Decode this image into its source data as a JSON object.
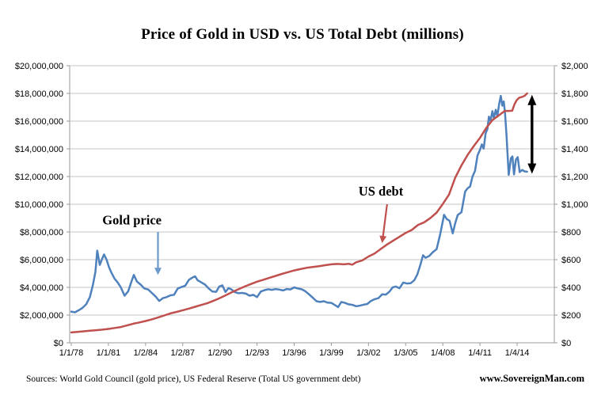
{
  "chart_data": {
    "type": "line",
    "title": "Price of Gold in USD vs. US Total Debt (millions)",
    "grid": true,
    "legend": "none",
    "x_axis": {
      "labels": [
        "1/1/78",
        "1/1/81",
        "1/2/84",
        "1/2/87",
        "1/2/90",
        "1/2/93",
        "1/3/96",
        "1/3/99",
        "1/3/02",
        "1/3/05",
        "1/4/08",
        "1/4/11",
        "1/4/14"
      ],
      "label_years": [
        1978,
        1981,
        1984,
        1987,
        1990,
        1993,
        1996,
        1999,
        2002,
        2005,
        2008,
        2011,
        2014
      ],
      "range_years": [
        1978,
        2017
      ]
    },
    "left_axis": {
      "min": 0,
      "max": 20000000,
      "tick_step": 2000000,
      "labels": [
        "$0",
        "$2,000,000",
        "$4,000,000",
        "$6,000,000",
        "$8,000,000",
        "$10,000,000",
        "$12,000,000",
        "$14,000,000",
        "$16,000,000",
        "$18,000,000",
        "$20,000,000"
      ]
    },
    "right_axis": {
      "min": 0,
      "max": 2000,
      "tick_step": 200,
      "labels": [
        "$0",
        "$200",
        "$400",
        "$600",
        "$800",
        "$1,000",
        "$1,200",
        "$1,400",
        "$1,600",
        "$1,800",
        "$2,000"
      ]
    },
    "series": [
      {
        "name": "Gold price",
        "axis": "right",
        "color": "#4F81BD",
        "width": 2.5,
        "points": [
          [
            1978.0,
            225
          ],
          [
            1978.3,
            220
          ],
          [
            1978.6,
            235
          ],
          [
            1978.9,
            252
          ],
          [
            1979.2,
            278
          ],
          [
            1979.5,
            330
          ],
          [
            1979.75,
            420
          ],
          [
            1979.95,
            512
          ],
          [
            1980.1,
            665
          ],
          [
            1980.3,
            562
          ],
          [
            1980.5,
            608
          ],
          [
            1980.65,
            638
          ],
          [
            1980.85,
            600
          ],
          [
            1981.05,
            545
          ],
          [
            1981.25,
            505
          ],
          [
            1981.5,
            462
          ],
          [
            1981.75,
            435
          ],
          [
            1982.0,
            400
          ],
          [
            1982.3,
            340
          ],
          [
            1982.6,
            372
          ],
          [
            1982.9,
            452
          ],
          [
            1983.05,
            490
          ],
          [
            1983.3,
            442
          ],
          [
            1983.6,
            420
          ],
          [
            1983.9,
            392
          ],
          [
            1984.2,
            385
          ],
          [
            1984.5,
            360
          ],
          [
            1984.8,
            335
          ],
          [
            1985.1,
            302
          ],
          [
            1985.4,
            322
          ],
          [
            1985.7,
            330
          ],
          [
            1986.0,
            342
          ],
          [
            1986.3,
            347
          ],
          [
            1986.6,
            392
          ],
          [
            1986.9,
            402
          ],
          [
            1987.2,
            412
          ],
          [
            1987.5,
            455
          ],
          [
            1987.8,
            472
          ],
          [
            1988.0,
            480
          ],
          [
            1988.2,
            452
          ],
          [
            1988.5,
            436
          ],
          [
            1988.8,
            420
          ],
          [
            1989.1,
            392
          ],
          [
            1989.4,
            370
          ],
          [
            1989.7,
            368
          ],
          [
            1989.95,
            406
          ],
          [
            1990.2,
            415
          ],
          [
            1990.45,
            366
          ],
          [
            1990.7,
            395
          ],
          [
            1990.95,
            384
          ],
          [
            1991.2,
            366
          ],
          [
            1991.5,
            358
          ],
          [
            1991.8,
            360
          ],
          [
            1992.1,
            355
          ],
          [
            1992.4,
            340
          ],
          [
            1992.7,
            346
          ],
          [
            1993.0,
            330
          ],
          [
            1993.3,
            370
          ],
          [
            1993.6,
            380
          ],
          [
            1993.9,
            386
          ],
          [
            1994.2,
            382
          ],
          [
            1994.5,
            388
          ],
          [
            1994.8,
            384
          ],
          [
            1995.1,
            378
          ],
          [
            1995.4,
            388
          ],
          [
            1995.7,
            385
          ],
          [
            1996.0,
            400
          ],
          [
            1996.3,
            392
          ],
          [
            1996.6,
            386
          ],
          [
            1996.9,
            372
          ],
          [
            1997.2,
            350
          ],
          [
            1997.5,
            325
          ],
          [
            1997.8,
            300
          ],
          [
            1998.1,
            295
          ],
          [
            1998.4,
            300
          ],
          [
            1998.7,
            290
          ],
          [
            1999.0,
            288
          ],
          [
            1999.3,
            272
          ],
          [
            1999.55,
            258
          ],
          [
            1999.8,
            295
          ],
          [
            2000.1,
            288
          ],
          [
            2000.4,
            278
          ],
          [
            2000.7,
            274
          ],
          [
            2001.0,
            264
          ],
          [
            2001.3,
            268
          ],
          [
            2001.6,
            275
          ],
          [
            2001.9,
            280
          ],
          [
            2002.2,
            302
          ],
          [
            2002.5,
            315
          ],
          [
            2002.8,
            322
          ],
          [
            2003.1,
            350
          ],
          [
            2003.4,
            348
          ],
          [
            2003.7,
            370
          ],
          [
            2003.95,
            400
          ],
          [
            2004.2,
            406
          ],
          [
            2004.5,
            394
          ],
          [
            2004.8,
            435
          ],
          [
            2005.1,
            428
          ],
          [
            2005.4,
            430
          ],
          [
            2005.7,
            452
          ],
          [
            2005.95,
            495
          ],
          [
            2006.2,
            565
          ],
          [
            2006.4,
            632
          ],
          [
            2006.6,
            614
          ],
          [
            2006.9,
            626
          ],
          [
            2007.2,
            655
          ],
          [
            2007.5,
            676
          ],
          [
            2007.8,
            790
          ],
          [
            2008.1,
            924
          ],
          [
            2008.3,
            895
          ],
          [
            2008.55,
            880
          ],
          [
            2008.8,
            790
          ],
          [
            2009.0,
            862
          ],
          [
            2009.2,
            922
          ],
          [
            2009.5,
            942
          ],
          [
            2009.8,
            1092
          ],
          [
            2010.0,
            1115
          ],
          [
            2010.2,
            1128
          ],
          [
            2010.4,
            1200
          ],
          [
            2010.6,
            1242
          ],
          [
            2010.8,
            1352
          ],
          [
            2011.0,
            1392
          ],
          [
            2011.15,
            1432
          ],
          [
            2011.3,
            1402
          ],
          [
            2011.45,
            1512
          ],
          [
            2011.6,
            1542
          ],
          [
            2011.72,
            1632
          ],
          [
            2011.85,
            1602
          ],
          [
            2012.0,
            1672
          ],
          [
            2012.12,
            1622
          ],
          [
            2012.28,
            1682
          ],
          [
            2012.4,
            1635
          ],
          [
            2012.55,
            1725
          ],
          [
            2012.68,
            1782
          ],
          [
            2012.8,
            1712
          ],
          [
            2012.92,
            1742
          ],
          [
            2013.02,
            1662
          ],
          [
            2013.15,
            1492
          ],
          [
            2013.32,
            1212
          ],
          [
            2013.5,
            1332
          ],
          [
            2013.62,
            1345
          ],
          [
            2013.75,
            1215
          ],
          [
            2013.9,
            1322
          ],
          [
            2014.05,
            1340
          ],
          [
            2014.2,
            1232
          ],
          [
            2014.4,
            1248
          ],
          [
            2014.6,
            1237
          ],
          [
            2014.8,
            1235
          ]
        ]
      },
      {
        "name": "US debt",
        "axis": "left",
        "color": "#C0504D",
        "width": 2.5,
        "points": [
          [
            1978.0,
            750000
          ],
          [
            1978.5,
            790000
          ],
          [
            1979.0,
            830000
          ],
          [
            1979.5,
            870000
          ],
          [
            1980.0,
            910000
          ],
          [
            1980.5,
            950000
          ],
          [
            1981.0,
            1000000
          ],
          [
            1981.5,
            1070000
          ],
          [
            1982.0,
            1140000
          ],
          [
            1982.5,
            1250000
          ],
          [
            1983.0,
            1380000
          ],
          [
            1983.5,
            1470000
          ],
          [
            1984.0,
            1570000
          ],
          [
            1984.5,
            1690000
          ],
          [
            1985.0,
            1820000
          ],
          [
            1985.5,
            1970000
          ],
          [
            1986.0,
            2120000
          ],
          [
            1986.5,
            2230000
          ],
          [
            1987.0,
            2350000
          ],
          [
            1987.5,
            2470000
          ],
          [
            1988.0,
            2600000
          ],
          [
            1988.5,
            2730000
          ],
          [
            1989.0,
            2860000
          ],
          [
            1989.5,
            3040000
          ],
          [
            1990.0,
            3230000
          ],
          [
            1990.5,
            3440000
          ],
          [
            1991.0,
            3660000
          ],
          [
            1991.5,
            3860000
          ],
          [
            1992.0,
            4060000
          ],
          [
            1992.5,
            4240000
          ],
          [
            1993.0,
            4410000
          ],
          [
            1993.5,
            4550000
          ],
          [
            1994.0,
            4690000
          ],
          [
            1994.5,
            4830000
          ],
          [
            1995.0,
            4970000
          ],
          [
            1995.5,
            5100000
          ],
          [
            1996.0,
            5220000
          ],
          [
            1996.5,
            5320000
          ],
          [
            1997.0,
            5410000
          ],
          [
            1997.5,
            5470000
          ],
          [
            1998.0,
            5530000
          ],
          [
            1998.5,
            5600000
          ],
          [
            1999.0,
            5660000
          ],
          [
            1999.5,
            5690000
          ],
          [
            2000.0,
            5660000
          ],
          [
            2000.4,
            5700000
          ],
          [
            2000.7,
            5640000
          ],
          [
            2001.0,
            5810000
          ],
          [
            2001.5,
            5950000
          ],
          [
            2002.0,
            6230000
          ],
          [
            2002.5,
            6450000
          ],
          [
            2003.0,
            6780000
          ],
          [
            2003.5,
            7100000
          ],
          [
            2004.0,
            7380000
          ],
          [
            2004.5,
            7650000
          ],
          [
            2005.0,
            7930000
          ],
          [
            2005.5,
            8150000
          ],
          [
            2006.0,
            8510000
          ],
          [
            2006.5,
            8700000
          ],
          [
            2007.0,
            9010000
          ],
          [
            2007.5,
            9400000
          ],
          [
            2008.0,
            10020000
          ],
          [
            2008.5,
            10700000
          ],
          [
            2009.0,
            11910000
          ],
          [
            2009.5,
            12800000
          ],
          [
            2010.0,
            13560000
          ],
          [
            2010.5,
            14200000
          ],
          [
            2011.0,
            14790000
          ],
          [
            2011.5,
            15500000
          ],
          [
            2012.0,
            16070000
          ],
          [
            2012.5,
            16400000
          ],
          [
            2013.0,
            16740000
          ],
          [
            2013.3,
            16740000
          ],
          [
            2013.6,
            16750000
          ],
          [
            2013.78,
            17200000
          ],
          [
            2013.95,
            17500000
          ],
          [
            2014.15,
            17680000
          ],
          [
            2014.4,
            17750000
          ],
          [
            2014.6,
            17820000
          ],
          [
            2014.8,
            18000000
          ]
        ]
      }
    ],
    "annotations": [
      {
        "label": "Gold price",
        "type": "arrow",
        "color": "#6D98CB",
        "text_color": "#000000",
        "axis": "right",
        "text_at": [
          1982.9,
          890
        ],
        "arrow_from": [
          1985.0,
          800
        ],
        "arrow_to": [
          1985.0,
          490
        ]
      },
      {
        "label": "US debt",
        "type": "arrow",
        "color": "#C0504D",
        "text_color": "#000000",
        "axis": "left",
        "text_at": [
          2003.0,
          10970000
        ],
        "arrow_from": [
          2003.5,
          10000000
        ],
        "arrow_to": [
          2003.1,
          7200000
        ]
      },
      {
        "label": "",
        "type": "double_arrow",
        "color": "#000000",
        "axis": "right",
        "at_year": 2015.2,
        "value_top": 1790,
        "value_bottom": 1220
      }
    ]
  },
  "colors": {
    "gold_line": "#4F81BD",
    "debt_line": "#C0504D",
    "gridline": "#C6C6C6",
    "axis_line": "#9B9B9B",
    "background": "#FFFFFF",
    "tick_label": "#000000"
  },
  "footer": {
    "sources": "Sources: World Gold Council (gold price), US Federal Reserve (Total US government debt)",
    "website": "www.SovereignMan.com"
  }
}
